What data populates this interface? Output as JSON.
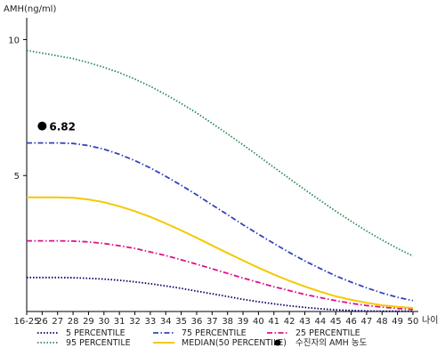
{
  "chart_data": {
    "type": "line",
    "ylabel": "AMH(ng/ml)",
    "xlabel": "나이",
    "categories": [
      "16-25",
      "26",
      "27",
      "28",
      "29",
      "30",
      "31",
      "32",
      "33",
      "34",
      "35",
      "36",
      "37",
      "38",
      "39",
      "40",
      "41",
      "42",
      "43",
      "44",
      "45",
      "46",
      "47",
      "48",
      "49",
      "50"
    ],
    "y_ticks": [
      "10",
      "5"
    ],
    "ylim": [
      0,
      10.8
    ],
    "grid": false,
    "legend_position": "bottom",
    "series": [
      {
        "name": "5 PERCENTILE",
        "color": "#000066",
        "dash": "dotted",
        "values": [
          1.25,
          1.25,
          1.25,
          1.24,
          1.22,
          1.19,
          1.15,
          1.09,
          1.02,
          0.94,
          0.85,
          0.75,
          0.65,
          0.55,
          0.45,
          0.36,
          0.28,
          0.21,
          0.15,
          0.1,
          0.06,
          0.04,
          0.02,
          0.01,
          0.01,
          0.01
        ]
      },
      {
        "name": "75 PERCENTILE",
        "color": "#3344bb",
        "dash": "dashdot",
        "values": [
          6.2,
          6.2,
          6.2,
          6.18,
          6.1,
          5.97,
          5.78,
          5.55,
          5.28,
          4.97,
          4.64,
          4.29,
          3.92,
          3.56,
          3.19,
          2.84,
          2.5,
          2.17,
          1.86,
          1.58,
          1.31,
          1.08,
          0.87,
          0.68,
          0.52,
          0.4
        ]
      },
      {
        "name": "25 PERCENTILE",
        "color": "#dd1188",
        "dash": "dashdot",
        "values": [
          2.6,
          2.6,
          2.6,
          2.59,
          2.56,
          2.5,
          2.42,
          2.32,
          2.19,
          2.06,
          1.9,
          1.74,
          1.57,
          1.4,
          1.23,
          1.07,
          0.91,
          0.77,
          0.63,
          0.51,
          0.4,
          0.3,
          0.22,
          0.16,
          0.11,
          0.08
        ]
      },
      {
        "name": "95 PERCENTILE",
        "color": "#2e8b57",
        "dash": "dotted",
        "values": [
          9.6,
          9.5,
          9.4,
          9.3,
          9.15,
          8.98,
          8.78,
          8.55,
          8.28,
          7.98,
          7.65,
          7.3,
          6.92,
          6.53,
          6.13,
          5.72,
          5.3,
          4.89,
          4.48,
          4.08,
          3.69,
          3.32,
          2.96,
          2.63,
          2.32,
          2.04
        ]
      },
      {
        "name": "MEDIAN(50 PERCENTILE)",
        "color": "#f5c800",
        "dash": "solid",
        "values": [
          4.2,
          4.2,
          4.2,
          4.18,
          4.12,
          4.02,
          3.87,
          3.69,
          3.48,
          3.24,
          2.98,
          2.71,
          2.43,
          2.15,
          1.88,
          1.61,
          1.36,
          1.13,
          0.92,
          0.73,
          0.56,
          0.43,
          0.32,
          0.23,
          0.17,
          0.13
        ]
      }
    ],
    "markers": [
      {
        "name": "수진자의 AMH 농도",
        "color": "#000000",
        "category": "26",
        "value": 6.82,
        "label": "6.82"
      }
    ]
  }
}
